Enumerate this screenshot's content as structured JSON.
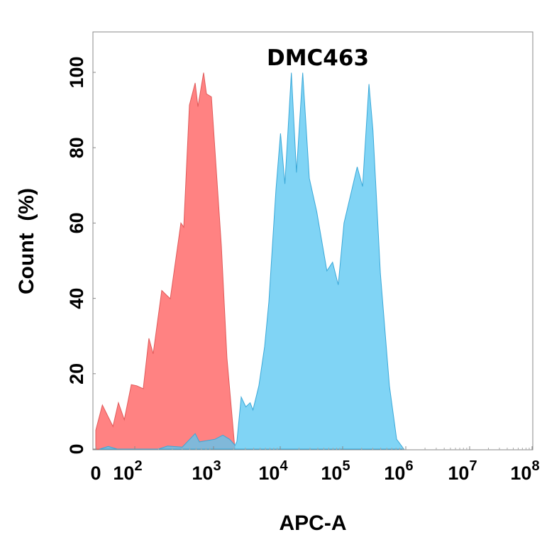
{
  "chart_data": {
    "type": "area",
    "title": "DMC463",
    "xlabel": "APC-A",
    "ylabel": "Count  (%)",
    "x_scale": "biexponential (logicle)",
    "xlim": [
      0,
      100000000
    ],
    "ylim": [
      0,
      100
    ],
    "grid": false,
    "legend": "none",
    "y_ticks": [
      {
        "value": 0,
        "label": "0"
      },
      {
        "value": 20,
        "label": "20"
      },
      {
        "value": 40,
        "label": "40"
      },
      {
        "value": 60,
        "label": "60"
      },
      {
        "value": 80,
        "label": "80"
      },
      {
        "value": 100,
        "label": "100"
      }
    ],
    "x_ticks": [
      {
        "value": 0,
        "base": "0",
        "exp": ""
      },
      {
        "value": 100,
        "base": "10",
        "exp": "2"
      },
      {
        "value": 1000,
        "base": "10",
        "exp": "3"
      },
      {
        "value": 10000,
        "base": "10",
        "exp": "4"
      },
      {
        "value": 100000,
        "base": "10",
        "exp": "5"
      },
      {
        "value": 1000000,
        "base": "10",
        "exp": "6"
      },
      {
        "value": 10000000,
        "base": "10",
        "exp": "7"
      },
      {
        "value": 100000000,
        "base": "10",
        "exp": "8"
      }
    ],
    "series": [
      {
        "color": "#ff7b7b",
        "stroke": "#e05a5a",
        "points": [
          [
            0,
            5
          ],
          [
            17,
            11.7
          ],
          [
            44,
            6
          ],
          [
            58,
            12.3
          ],
          [
            73,
            7.8
          ],
          [
            91,
            17.1
          ],
          [
            106,
            16.8
          ],
          [
            128,
            16
          ],
          [
            151,
            29.4
          ],
          [
            171,
            25.3
          ],
          [
            220,
            42.1
          ],
          [
            282,
            39.9
          ],
          [
            385,
            60
          ],
          [
            418,
            58.9
          ],
          [
            494,
            91.3
          ],
          [
            584,
            97.2
          ],
          [
            634,
            90.9
          ],
          [
            748,
            99.9
          ],
          [
            813,
            94.3
          ],
          [
            940,
            93.5
          ],
          [
            1310,
            54
          ],
          [
            1590,
            24.2
          ],
          [
            2090,
            0
          ]
        ]
      },
      {
        "color": "#5cc8f2",
        "stroke": "#3aa8d8",
        "points": [
          [
            10,
            0
          ],
          [
            32,
            0.7
          ],
          [
            55,
            0
          ],
          [
            200,
            0
          ],
          [
            260,
            0.8
          ],
          [
            400,
            0.5
          ],
          [
            584,
            4.1
          ],
          [
            660,
            1.9
          ],
          [
            1050,
            2.6
          ],
          [
            1380,
            3.7
          ],
          [
            1740,
            2.6
          ],
          [
            2100,
            1
          ],
          [
            2240,
            2
          ],
          [
            2600,
            13.8
          ],
          [
            3050,
            11.2
          ],
          [
            3540,
            12.3
          ],
          [
            3900,
            10.4
          ],
          [
            4780,
            16.8
          ],
          [
            5840,
            27.2
          ],
          [
            6760,
            39.1
          ],
          [
            8630,
            68.9
          ],
          [
            10100,
            83.8
          ],
          [
            11900,
            70.4
          ],
          [
            15100,
            99.9
          ],
          [
            18200,
            73.4
          ],
          [
            22900,
            99.9
          ],
          [
            29200,
            71.9
          ],
          [
            38500,
            63
          ],
          [
            56000,
            47.3
          ],
          [
            69000,
            49.6
          ],
          [
            85000,
            43.6
          ],
          [
            105000,
            60
          ],
          [
            170000,
            74.9
          ],
          [
            207000,
            69.7
          ],
          [
            261000,
            96.9
          ],
          [
            302000,
            84.6
          ],
          [
            396000,
            46.6
          ],
          [
            550000,
            16.8
          ],
          [
            716000,
            2.6
          ],
          [
            933000,
            0
          ]
        ]
      }
    ]
  }
}
